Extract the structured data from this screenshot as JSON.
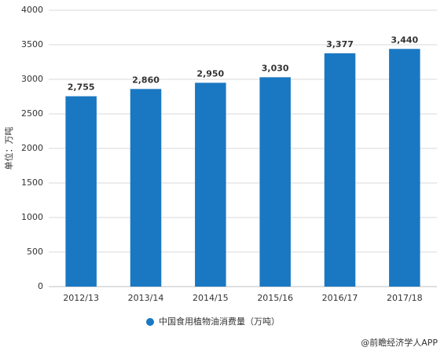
{
  "chart_data": {
    "type": "bar",
    "y_label": "单位：万吨",
    "categories": [
      "2012/13",
      "2013/14",
      "2014/15",
      "2015/16",
      "2016/17",
      "2017/18"
    ],
    "series": [
      {
        "name": "中国食用植物油消费量（万吨）",
        "color": "#1a78c2",
        "values": [
          2755,
          2860,
          2950,
          3030,
          3377,
          3440
        ],
        "value_labels": [
          "2,755",
          "2,860",
          "2,950",
          "3,030",
          "3,377",
          "3,440"
        ]
      }
    ],
    "ylim": [
      0,
      4000
    ],
    "yticks": [
      0,
      500,
      1000,
      1500,
      2000,
      2500,
      3000,
      3500,
      4000
    ],
    "grid": true,
    "source": "@前瞻经济学人APP"
  }
}
